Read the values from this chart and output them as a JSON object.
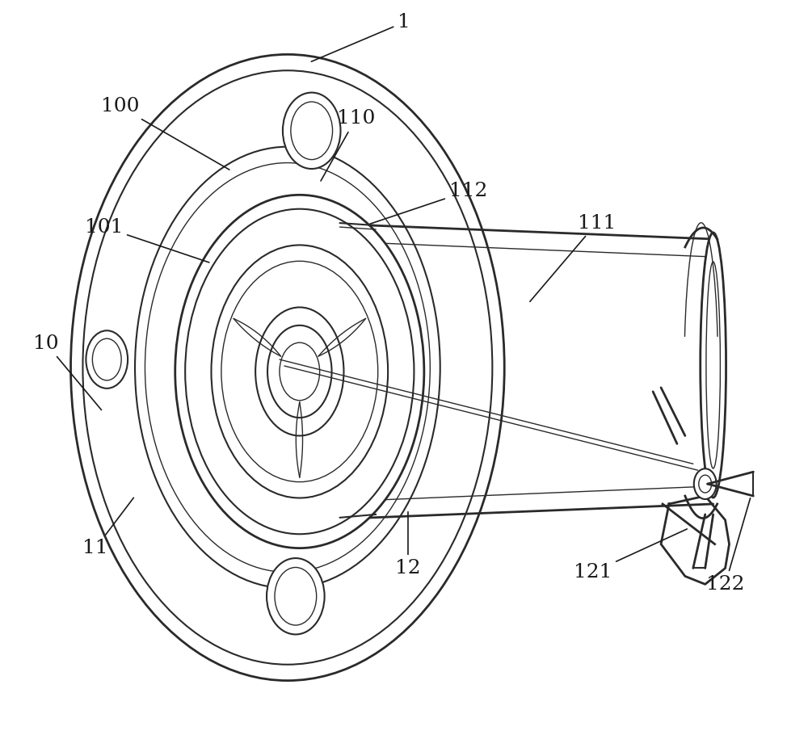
{
  "bg_color": "#ffffff",
  "lc": "#2a2a2a",
  "lw_thick": 2.0,
  "lw_med": 1.5,
  "lw_thin": 1.0,
  "label_fs": 18,
  "ann_lw": 1.2,
  "ann_color": "#1a1a1a"
}
